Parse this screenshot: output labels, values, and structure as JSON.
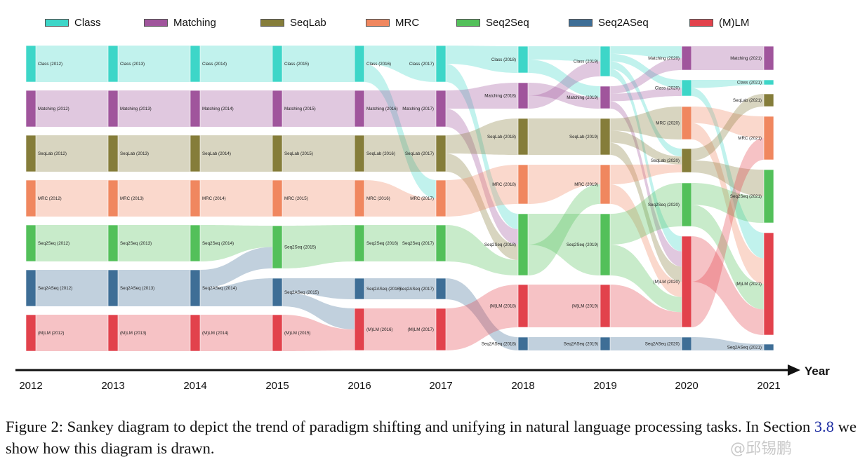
{
  "legend": [
    {
      "label": "Class",
      "color": "#3dd6c8"
    },
    {
      "label": "Matching",
      "color": "#a0559c"
    },
    {
      "label": "SeqLab",
      "color": "#857d3a"
    },
    {
      "label": "MRC",
      "color": "#f0875f"
    },
    {
      "label": "Seq2Seq",
      "color": "#53c05a"
    },
    {
      "label": "Seq2ASeq",
      "color": "#3e6e96"
    },
    {
      "label": "(M)LM",
      "color": "#e2424c"
    }
  ],
  "years": [
    "2012",
    "2013",
    "2014",
    "2015",
    "2016",
    "2017",
    "2018",
    "2019",
    "2020",
    "2021"
  ],
  "axis_title": "Year",
  "nodes": [
    {
      "label": "Class (2012)",
      "cat": 0,
      "year": 0,
      "slot": 0
    },
    {
      "label": "Matching (2012)",
      "cat": 1,
      "year": 0,
      "slot": 1
    },
    {
      "label": "SeqLab (2012)",
      "cat": 2,
      "year": 0,
      "slot": 2
    },
    {
      "label": "MRC (2012)",
      "cat": 3,
      "year": 0,
      "slot": 3
    },
    {
      "label": "Seq2Seq (2012)",
      "cat": 4,
      "year": 0,
      "slot": 4
    },
    {
      "label": "Seq2ASeq (2012)",
      "cat": 5,
      "year": 0,
      "slot": 5
    },
    {
      "label": "(M)LM (2012)",
      "cat": 6,
      "year": 0,
      "slot": 6
    },
    {
      "label": "Class (2013)",
      "cat": 0,
      "year": 1,
      "slot": 0
    },
    {
      "label": "Matching (2013)",
      "cat": 1,
      "year": 1,
      "slot": 1
    },
    {
      "label": "SeqLab (2013)",
      "cat": 2,
      "year": 1,
      "slot": 2
    },
    {
      "label": "MRC (2013)",
      "cat": 3,
      "year": 1,
      "slot": 3
    },
    {
      "label": "Seq2Seq (2013)",
      "cat": 4,
      "year": 1,
      "slot": 4
    },
    {
      "label": "Seq2ASeq (2013)",
      "cat": 5,
      "year": 1,
      "slot": 5
    },
    {
      "label": "(M)LM (2013)",
      "cat": 6,
      "year": 1,
      "slot": 6
    },
    {
      "label": "Class (2014)",
      "cat": 0,
      "year": 2,
      "slot": 0
    },
    {
      "label": "Matching (2014)",
      "cat": 1,
      "year": 2,
      "slot": 1
    },
    {
      "label": "SeqLab (2014)",
      "cat": 2,
      "year": 2,
      "slot": 2
    },
    {
      "label": "MRC (2014)",
      "cat": 3,
      "year": 2,
      "slot": 3
    },
    {
      "label": "Seq2Seq (2014)",
      "cat": 4,
      "year": 2,
      "slot": 4
    },
    {
      "label": "Seq2ASeq (2014)",
      "cat": 5,
      "year": 2,
      "slot": 5
    },
    {
      "label": "(M)LM (2014)",
      "cat": 6,
      "year": 2,
      "slot": 6
    },
    {
      "label": "Class (2015)",
      "cat": 0,
      "year": 3,
      "slot": 0
    },
    {
      "label": "Matching (2015)",
      "cat": 1,
      "year": 3,
      "slot": 1
    },
    {
      "label": "SeqLab (2015)",
      "cat": 2,
      "year": 3,
      "slot": 2
    },
    {
      "label": "MRC (2015)",
      "cat": 3,
      "year": 3,
      "slot": 3
    },
    {
      "label": "Seq2Seq (2015)",
      "cat": 4,
      "year": 3,
      "slot": 4
    },
    {
      "label": "Seq2ASeq (2015)",
      "cat": 5,
      "year": 3,
      "slot": 5
    },
    {
      "label": "(M)LM (2015)",
      "cat": 6,
      "year": 3,
      "slot": 6
    },
    {
      "label": "Class (2016)",
      "cat": 0,
      "year": 4,
      "slot": 0
    },
    {
      "label": "Matching (2016)",
      "cat": 1,
      "year": 4,
      "slot": 1
    },
    {
      "label": "SeqLab (2016)",
      "cat": 2,
      "year": 4,
      "slot": 2
    },
    {
      "label": "MRC (2016)",
      "cat": 3,
      "year": 4,
      "slot": 3
    },
    {
      "label": "Seq2Seq (2016)",
      "cat": 4,
      "year": 4,
      "slot": 4
    },
    {
      "label": "Seq2ASeq (2016)",
      "cat": 5,
      "year": 4,
      "slot": 5
    },
    {
      "label": "(M)LM (2016)",
      "cat": 6,
      "year": 4,
      "slot": 6
    },
    {
      "label": "Class (2017)",
      "cat": 0,
      "year": 5,
      "slot": 0
    },
    {
      "label": "Matching (2017)",
      "cat": 1,
      "year": 5,
      "slot": 1
    },
    {
      "label": "SeqLab (2017)",
      "cat": 2,
      "year": 5,
      "slot": 2
    },
    {
      "label": "MRC (2017)",
      "cat": 3,
      "year": 5,
      "slot": 3
    },
    {
      "label": "Seq2Seq (2017)",
      "cat": 4,
      "year": 5,
      "slot": 4
    },
    {
      "label": "Seq2ASeq (2017)",
      "cat": 5,
      "year": 5,
      "slot": 5
    },
    {
      "label": "(M)LM (2017)",
      "cat": 6,
      "year": 5,
      "slot": 6
    },
    {
      "label": "Class (2018)",
      "cat": 0,
      "year": 6,
      "slot": 0
    },
    {
      "label": "Matching (2018)",
      "cat": 1,
      "year": 6,
      "slot": 1
    },
    {
      "label": "SeqLab (2018)",
      "cat": 2,
      "year": 6,
      "slot": 2
    },
    {
      "label": "MRC (2018)",
      "cat": 3,
      "year": 6,
      "slot": 3
    },
    {
      "label": "Seq2Seq (2018)",
      "cat": 4,
      "year": 6,
      "slot": 4
    },
    {
      "label": "(M)LM (2018)",
      "cat": 6,
      "year": 6,
      "slot": 5
    },
    {
      "label": "Seq2ASeq (2018)",
      "cat": 5,
      "year": 6,
      "slot": 6
    },
    {
      "label": "Class (2019)",
      "cat": 0,
      "year": 7,
      "slot": 0
    },
    {
      "label": "Matching (2019)",
      "cat": 1,
      "year": 7,
      "slot": 1
    },
    {
      "label": "SeqLab (2019)",
      "cat": 2,
      "year": 7,
      "slot": 2
    },
    {
      "label": "MRC (2019)",
      "cat": 3,
      "year": 7,
      "slot": 3
    },
    {
      "label": "Seq2Seq (2019)",
      "cat": 4,
      "year": 7,
      "slot": 4
    },
    {
      "label": "(M)LM (2019)",
      "cat": 6,
      "year": 7,
      "slot": 5
    },
    {
      "label": "Seq2ASeq (2019)",
      "cat": 5,
      "year": 7,
      "slot": 6
    },
    {
      "label": "Matching (2020)",
      "cat": 1,
      "year": 8,
      "slot": 0
    },
    {
      "label": "Class (2020)",
      "cat": 0,
      "year": 8,
      "slot": 1
    },
    {
      "label": "MRC (2020)",
      "cat": 3,
      "year": 8,
      "slot": 2
    },
    {
      "label": "SeqLab (2020)",
      "cat": 2,
      "year": 8,
      "slot": 3
    },
    {
      "label": "Seq2Seq (2020)",
      "cat": 4,
      "year": 8,
      "slot": 4
    },
    {
      "label": "(M)LM (2020)",
      "cat": 6,
      "year": 8,
      "slot": 5
    },
    {
      "label": "Seq2ASeq (2020)",
      "cat": 5,
      "year": 8,
      "slot": 6
    },
    {
      "label": "Matching (2021)",
      "cat": 1,
      "year": 9,
      "slot": 0
    },
    {
      "label": "Class (2021)",
      "cat": 0,
      "year": 9,
      "slot": 1
    },
    {
      "label": "SeqLab (2021)",
      "cat": 2,
      "year": 9,
      "slot": 2
    },
    {
      "label": "MRC (2021)",
      "cat": 3,
      "year": 9,
      "slot": 3
    },
    {
      "label": "Seq2Seq (2021)",
      "cat": 4,
      "year": 9,
      "slot": 4
    },
    {
      "label": "(M)LM (2021)",
      "cat": 6,
      "year": 9,
      "slot": 5
    },
    {
      "label": "Seq2ASeq (2021)",
      "cat": 5,
      "year": 9,
      "slot": 6
    }
  ],
  "flows": [
    {
      "from": "Class (2012)",
      "to": "Class (2013)"
    },
    {
      "from": "Matching (2012)",
      "to": "Matching (2013)"
    },
    {
      "from": "SeqLab (2012)",
      "to": "SeqLab (2013)"
    },
    {
      "from": "MRC (2012)",
      "to": "MRC (2013)"
    },
    {
      "from": "Seq2Seq (2012)",
      "to": "Seq2Seq (2013)"
    },
    {
      "from": "Seq2ASeq (2012)",
      "to": "Seq2ASeq (2013)"
    },
    {
      "from": "(M)LM (2012)",
      "to": "(M)LM (2013)"
    },
    {
      "from": "Class (2013)",
      "to": "Class (2014)"
    },
    {
      "from": "Matching (2013)",
      "to": "Matching (2014)"
    },
    {
      "from": "SeqLab (2013)",
      "to": "SeqLab (2014)"
    },
    {
      "from": "MRC (2013)",
      "to": "MRC (2014)"
    },
    {
      "from": "Seq2Seq (2013)",
      "to": "Seq2Seq (2014)"
    },
    {
      "from": "Seq2ASeq (2013)",
      "to": "Seq2ASeq (2014)"
    },
    {
      "from": "(M)LM (2013)",
      "to": "(M)LM (2014)"
    },
    {
      "from": "Class (2014)",
      "to": "Class (2015)"
    },
    {
      "from": "Matching (2014)",
      "to": "Matching (2015)"
    },
    {
      "from": "SeqLab (2014)",
      "to": "SeqLab (2015)"
    },
    {
      "from": "MRC (2014)",
      "to": "MRC (2015)"
    },
    {
      "from": "Seq2Seq (2014)",
      "to": "Seq2Seq (2015)"
    },
    {
      "from": "Seq2ASeq (2014)",
      "to": "Seq2Seq (2015)"
    },
    {
      "from": "Seq2ASeq (2014)",
      "to": "Seq2ASeq (2015)"
    },
    {
      "from": "(M)LM (2014)",
      "to": "(M)LM (2015)"
    },
    {
      "from": "Class (2015)",
      "to": "Class (2016)"
    },
    {
      "from": "Matching (2015)",
      "to": "Matching (2016)"
    },
    {
      "from": "SeqLab (2015)",
      "to": "SeqLab (2016)"
    },
    {
      "from": "MRC (2015)",
      "to": "MRC (2016)"
    },
    {
      "from": "Seq2Seq (2015)",
      "to": "Seq2Seq (2016)"
    },
    {
      "from": "Seq2ASeq (2015)",
      "to": "Seq2ASeq (2016)"
    },
    {
      "from": "Seq2ASeq (2015)",
      "to": "(M)LM (2016)"
    },
    {
      "from": "(M)LM (2015)",
      "to": "(M)LM (2016)"
    },
    {
      "from": "Class (2016)",
      "to": "Class (2017)"
    },
    {
      "from": "Class (2016)",
      "to": "MRC (2017)"
    },
    {
      "from": "Matching (2016)",
      "to": "Matching (2017)"
    },
    {
      "from": "SeqLab (2016)",
      "to": "SeqLab (2017)"
    },
    {
      "from": "MRC (2016)",
      "to": "MRC (2017)"
    },
    {
      "from": "Seq2Seq (2016)",
      "to": "Seq2Seq (2017)"
    },
    {
      "from": "Seq2ASeq (2016)",
      "to": "Seq2ASeq (2017)"
    },
    {
      "from": "(M)LM (2016)",
      "to": "(M)LM (2017)"
    },
    {
      "from": "Class (2017)",
      "to": "Class (2018)"
    },
    {
      "from": "Class (2017)",
      "to": "Seq2Seq (2018)"
    },
    {
      "from": "Matching (2017)",
      "to": "Matching (2018)"
    },
    {
      "from": "Matching (2017)",
      "to": "Seq2Seq (2018)"
    },
    {
      "from": "SeqLab (2017)",
      "to": "SeqLab (2018)"
    },
    {
      "from": "SeqLab (2017)",
      "to": "Seq2Seq (2018)"
    },
    {
      "from": "MRC (2017)",
      "to": "MRC (2018)"
    },
    {
      "from": "Seq2Seq (2017)",
      "to": "Seq2Seq (2018)"
    },
    {
      "from": "Seq2ASeq (2017)",
      "to": "Seq2ASeq (2018)"
    },
    {
      "from": "(M)LM (2017)",
      "to": "(M)LM (2018)"
    },
    {
      "from": "Class (2018)",
      "to": "Class (2019)"
    },
    {
      "from": "Class (2018)",
      "to": "Matching (2019)"
    },
    {
      "from": "Matching (2018)",
      "to": "Matching (2019)"
    },
    {
      "from": "Matching (2018)",
      "to": "Class (2019)"
    },
    {
      "from": "SeqLab (2018)",
      "to": "SeqLab (2019)"
    },
    {
      "from": "MRC (2018)",
      "to": "MRC (2019)"
    },
    {
      "from": "Seq2Seq (2018)",
      "to": "Seq2Seq (2019)"
    },
    {
      "from": "Seq2Seq (2018)",
      "to": "MRC (2019)"
    },
    {
      "from": "(M)LM (2018)",
      "to": "(M)LM (2019)"
    },
    {
      "from": "Seq2ASeq (2018)",
      "to": "Seq2ASeq (2019)"
    },
    {
      "from": "Class (2019)",
      "to": "Matching (2020)"
    },
    {
      "from": "Class (2019)",
      "to": "Class (2020)"
    },
    {
      "from": "Class (2019)",
      "to": "SeqLab (2020)"
    },
    {
      "from": "Class (2019)",
      "to": "(M)LM (2020)"
    },
    {
      "from": "Matching (2019)",
      "to": "Matching (2020)"
    },
    {
      "from": "Matching (2019)",
      "to": "Class (2020)"
    },
    {
      "from": "Matching (2019)",
      "to": "(M)LM (2020)"
    },
    {
      "from": "SeqLab (2019)",
      "to": "MRC (2020)"
    },
    {
      "from": "SeqLab (2019)",
      "to": "SeqLab (2020)"
    },
    {
      "from": "SeqLab (2019)",
      "to": "(M)LM (2020)"
    },
    {
      "from": "MRC (2019)",
      "to": "SeqLab (2020)"
    },
    {
      "from": "MRC (2019)",
      "to": "(M)LM (2020)"
    },
    {
      "from": "Seq2Seq (2019)",
      "to": "Seq2Seq (2020)"
    },
    {
      "from": "Seq2Seq (2019)",
      "to": "(M)LM (2020)"
    },
    {
      "from": "(M)LM (2019)",
      "to": "(M)LM (2020)"
    },
    {
      "from": "Seq2ASeq (2019)",
      "to": "Seq2ASeq (2020)"
    },
    {
      "from": "Matching (2020)",
      "to": "Matching (2021)"
    },
    {
      "from": "Class (2020)",
      "to": "Class (2021)"
    },
    {
      "from": "Class (2020)",
      "to": "(M)LM (2021)"
    },
    {
      "from": "MRC (2020)",
      "to": "MRC (2021)"
    },
    {
      "from": "MRC (2020)",
      "to": "(M)LM (2021)"
    },
    {
      "from": "SeqLab (2020)",
      "to": "SeqLab (2021)"
    },
    {
      "from": "SeqLab (2020)",
      "to": "Seq2Seq (2021)"
    },
    {
      "from": "Seq2Seq (2020)",
      "to": "Seq2Seq (2021)"
    },
    {
      "from": "Seq2Seq (2020)",
      "to": "(M)LM (2021)"
    },
    {
      "from": "(M)LM (2020)",
      "to": "(M)LM (2021)"
    },
    {
      "from": "(M)LM (2020)",
      "to": "MRC (2021)"
    },
    {
      "from": "Seq2ASeq (2020)",
      "to": "Seq2ASeq (2021)"
    }
  ],
  "caption": {
    "label": "Figure 2:",
    "text": "Sankey diagram to depict the trend of paradigm shifting and unifying in natural language processing tasks. In Section",
    "ref": "3.8",
    "text_after": "we show how this diagram is drawn."
  },
  "watermark": "@邱锡鹏"
}
